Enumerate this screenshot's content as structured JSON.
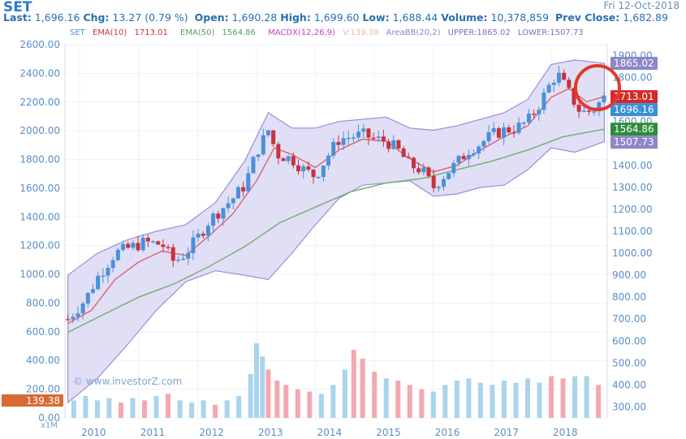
{
  "header": {
    "symbol": "SET",
    "date": "Fri 12-Oct-2018",
    "quote_line": "Last: 1,696.16 Chg: 13.27 (0.79 %)  Open: 1,690.28 High: 1,699.60 Low: 1,688.44 Volume: 10,378,859  Prev Close: 1,682.89",
    "last_label": "Last:",
    "last": "1,696.16",
    "chg_label": "Chg:",
    "chg": "13.27 (0.79 %)",
    "open_label": "Open:",
    "open": "1,690.28",
    "high_label": "High:",
    "high": "1,699.60",
    "low_label": "Low:",
    "low": "1,688.44",
    "volume_label": "Volume:",
    "volume": "10,378,859",
    "prev_label": "Prev Close:",
    "prev": "1,682.89"
  },
  "legend": {
    "set": "SET",
    "ema10": "EMA(10)",
    "ema10_val": "1713.01",
    "ema50": "EMA(50)",
    "ema50_val": "1564.86",
    "macd": "MACDX(12,26,9)",
    "vol": "V:139.38",
    "bb": "AreaBB(20,2)",
    "upper": "UPPER:1865.02",
    "lower": "LOWER:1507.73"
  },
  "watermark": "© www.investorZ.com",
  "xm_label": "x1M",
  "colors": {
    "up": "#4a90d9",
    "down": "#c8323c",
    "ema10": "#d9646e",
    "ema50": "#6fae6f",
    "band_fill": "#dcd9f5",
    "band_edge": "#9a8fd8",
    "vol_up": "#a9d4ec",
    "vol_down": "#f3a8b0",
    "circle": "#e03a2a"
  },
  "badges": {
    "upper": "1865.02",
    "ema10": "1713.01",
    "last": "1696.16",
    "ema50": "1564.86",
    "lower": "1507.73",
    "volume": "139.38"
  },
  "chart_data": {
    "type": "candlestick",
    "left_axis_ticks": [
      "2600.00",
      "2400.00",
      "2200.00",
      "2000.00",
      "1800.00",
      "1600.00",
      "1400.00",
      "1200.00",
      "1000.00",
      "800.00",
      "600.00",
      "400.00",
      "200.00",
      "0.00"
    ],
    "right_axis_ticks": [
      "1900.00",
      "1800.00",
      "1700.00",
      "1600.00",
      "1500.00",
      "1400.00",
      "1300.00",
      "1200.00",
      "1100.00",
      "1000.00",
      "900.00",
      "800.00",
      "700.00",
      "600.00",
      "500.00",
      "400.00",
      "300.00"
    ],
    "x_ticks": [
      "2010",
      "2011",
      "2012",
      "2013",
      "2014",
      "2015",
      "2016",
      "2017",
      "2018"
    ],
    "price_range": [
      250,
      1950
    ],
    "price_points": [
      [
        2009.8,
        700
      ],
      [
        2010.1,
        790
      ],
      [
        2010.3,
        890
      ],
      [
        2010.6,
        1000
      ],
      [
        2010.9,
        1030
      ],
      [
        2011.1,
        1050
      ],
      [
        2011.4,
        1040
      ],
      [
        2011.6,
        960
      ],
      [
        2011.8,
        1000
      ],
      [
        2012.0,
        1070
      ],
      [
        2012.2,
        1150
      ],
      [
        2012.4,
        1200
      ],
      [
        2012.6,
        1250
      ],
      [
        2012.8,
        1310
      ],
      [
        2013.0,
        1460
      ],
      [
        2013.2,
        1560
      ],
      [
        2013.35,
        1450
      ],
      [
        2013.6,
        1430
      ],
      [
        2013.8,
        1380
      ],
      [
        2014.0,
        1350
      ],
      [
        2014.2,
        1440
      ],
      [
        2014.4,
        1520
      ],
      [
        2014.6,
        1530
      ],
      [
        2014.8,
        1540
      ],
      [
        2015.0,
        1520
      ],
      [
        2015.2,
        1510
      ],
      [
        2015.4,
        1470
      ],
      [
        2015.6,
        1400
      ],
      [
        2015.8,
        1380
      ],
      [
        2016.0,
        1300
      ],
      [
        2016.2,
        1360
      ],
      [
        2016.4,
        1410
      ],
      [
        2016.6,
        1470
      ],
      [
        2016.8,
        1500
      ],
      [
        2017.0,
        1540
      ],
      [
        2017.2,
        1560
      ],
      [
        2017.4,
        1570
      ],
      [
        2017.6,
        1600
      ],
      [
        2017.8,
        1680
      ],
      [
        2018.0,
        1780
      ],
      [
        2018.1,
        1820
      ],
      [
        2018.3,
        1730
      ],
      [
        2018.5,
        1640
      ],
      [
        2018.7,
        1650
      ],
      [
        2018.9,
        1710
      ]
    ],
    "ema10_points": [
      [
        2009.8,
        680
      ],
      [
        2010.2,
        740
      ],
      [
        2010.6,
        880
      ],
      [
        2011.0,
        960
      ],
      [
        2011.4,
        1010
      ],
      [
        2011.8,
        990
      ],
      [
        2012.2,
        1080
      ],
      [
        2012.6,
        1180
      ],
      [
        2013.0,
        1330
      ],
      [
        2013.3,
        1480
      ],
      [
        2013.6,
        1450
      ],
      [
        2014.0,
        1390
      ],
      [
        2014.4,
        1470
      ],
      [
        2014.8,
        1520
      ],
      [
        2015.2,
        1510
      ],
      [
        2015.6,
        1430
      ],
      [
        2016.0,
        1370
      ],
      [
        2016.4,
        1400
      ],
      [
        2016.8,
        1470
      ],
      [
        2017.2,
        1530
      ],
      [
        2017.6,
        1580
      ],
      [
        2018.0,
        1710
      ],
      [
        2018.3,
        1750
      ],
      [
        2018.6,
        1690
      ],
      [
        2018.9,
        1713
      ]
    ],
    "ema50_points": [
      [
        2009.8,
        640
      ],
      [
        2010.4,
        720
      ],
      [
        2011.0,
        800
      ],
      [
        2011.6,
        860
      ],
      [
        2012.2,
        940
      ],
      [
        2012.8,
        1030
      ],
      [
        2013.4,
        1140
      ],
      [
        2014.0,
        1210
      ],
      [
        2014.6,
        1280
      ],
      [
        2015.2,
        1320
      ],
      [
        2015.8,
        1340
      ],
      [
        2016.4,
        1380
      ],
      [
        2017.0,
        1420
      ],
      [
        2017.6,
        1470
      ],
      [
        2018.2,
        1530
      ],
      [
        2018.9,
        1565
      ]
    ],
    "bb_upper_points": [
      [
        2009.8,
        900
      ],
      [
        2010.3,
        1000
      ],
      [
        2010.8,
        1060
      ],
      [
        2011.3,
        1100
      ],
      [
        2011.8,
        1130
      ],
      [
        2012.3,
        1230
      ],
      [
        2012.8,
        1420
      ],
      [
        2013.2,
        1640
      ],
      [
        2013.6,
        1570
      ],
      [
        2014.0,
        1570
      ],
      [
        2014.4,
        1600
      ],
      [
        2014.8,
        1610
      ],
      [
        2015.2,
        1620
      ],
      [
        2015.6,
        1570
      ],
      [
        2016.0,
        1560
      ],
      [
        2016.4,
        1580
      ],
      [
        2016.8,
        1610
      ],
      [
        2017.2,
        1640
      ],
      [
        2017.6,
        1700
      ],
      [
        2018.0,
        1860
      ],
      [
        2018.4,
        1880
      ],
      [
        2018.9,
        1865
      ]
    ],
    "bb_lower_points": [
      [
        2009.8,
        320
      ],
      [
        2010.3,
        430
      ],
      [
        2010.8,
        580
      ],
      [
        2011.3,
        740
      ],
      [
        2011.8,
        870
      ],
      [
        2012.3,
        920
      ],
      [
        2012.8,
        900
      ],
      [
        2013.2,
        880
      ],
      [
        2013.6,
        1000
      ],
      [
        2014.0,
        1130
      ],
      [
        2014.4,
        1250
      ],
      [
        2014.8,
        1310
      ],
      [
        2015.2,
        1320
      ],
      [
        2015.6,
        1330
      ],
      [
        2016.0,
        1260
      ],
      [
        2016.4,
        1270
      ],
      [
        2016.8,
        1300
      ],
      [
        2017.2,
        1310
      ],
      [
        2017.6,
        1380
      ],
      [
        2018.0,
        1480
      ],
      [
        2018.4,
        1460
      ],
      [
        2018.9,
        1508
      ]
    ],
    "volume_bars": [
      {
        "x": 2009.9,
        "v": 330,
        "up": true
      },
      {
        "x": 2010.1,
        "v": 350,
        "up": true
      },
      {
        "x": 2010.3,
        "v": 330,
        "up": true
      },
      {
        "x": 2010.5,
        "v": 340,
        "up": true
      },
      {
        "x": 2010.7,
        "v": 320,
        "up": false
      },
      {
        "x": 2010.9,
        "v": 340,
        "up": true
      },
      {
        "x": 2011.1,
        "v": 330,
        "up": false
      },
      {
        "x": 2011.3,
        "v": 350,
        "up": true
      },
      {
        "x": 2011.5,
        "v": 360,
        "up": false
      },
      {
        "x": 2011.7,
        "v": 330,
        "up": true
      },
      {
        "x": 2011.9,
        "v": 320,
        "up": true
      },
      {
        "x": 2012.1,
        "v": 330,
        "up": true
      },
      {
        "x": 2012.3,
        "v": 310,
        "up": false
      },
      {
        "x": 2012.5,
        "v": 330,
        "up": true
      },
      {
        "x": 2012.7,
        "v": 350,
        "up": true
      },
      {
        "x": 2012.9,
        "v": 450,
        "up": true
      },
      {
        "x": 2013.0,
        "v": 590,
        "up": true
      },
      {
        "x": 2013.1,
        "v": 530,
        "up": true
      },
      {
        "x": 2013.2,
        "v": 470,
        "up": false
      },
      {
        "x": 2013.35,
        "v": 420,
        "up": false
      },
      {
        "x": 2013.5,
        "v": 400,
        "up": false
      },
      {
        "x": 2013.7,
        "v": 380,
        "up": false
      },
      {
        "x": 2013.9,
        "v": 370,
        "up": false
      },
      {
        "x": 2014.1,
        "v": 360,
        "up": true
      },
      {
        "x": 2014.3,
        "v": 400,
        "up": true
      },
      {
        "x": 2014.5,
        "v": 470,
        "up": true
      },
      {
        "x": 2014.65,
        "v": 560,
        "up": false
      },
      {
        "x": 2014.8,
        "v": 520,
        "up": false
      },
      {
        "x": 2015.0,
        "v": 460,
        "up": false
      },
      {
        "x": 2015.2,
        "v": 430,
        "up": true
      },
      {
        "x": 2015.4,
        "v": 420,
        "up": false
      },
      {
        "x": 2015.6,
        "v": 400,
        "up": false
      },
      {
        "x": 2015.8,
        "v": 380,
        "up": false
      },
      {
        "x": 2016.0,
        "v": 370,
        "up": true
      },
      {
        "x": 2016.2,
        "v": 400,
        "up": true
      },
      {
        "x": 2016.4,
        "v": 420,
        "up": true
      },
      {
        "x": 2016.6,
        "v": 430,
        "up": true
      },
      {
        "x": 2016.8,
        "v": 410,
        "up": true
      },
      {
        "x": 2017.0,
        "v": 400,
        "up": true
      },
      {
        "x": 2017.2,
        "v": 420,
        "up": true
      },
      {
        "x": 2017.4,
        "v": 410,
        "up": true
      },
      {
        "x": 2017.6,
        "v": 430,
        "up": true
      },
      {
        "x": 2017.8,
        "v": 410,
        "up": true
      },
      {
        "x": 2018.0,
        "v": 440,
        "up": false
      },
      {
        "x": 2018.2,
        "v": 430,
        "up": false
      },
      {
        "x": 2018.4,
        "v": 440,
        "up": true
      },
      {
        "x": 2018.6,
        "v": 440,
        "up": true
      },
      {
        "x": 2018.8,
        "v": 400,
        "up": false
      }
    ]
  }
}
